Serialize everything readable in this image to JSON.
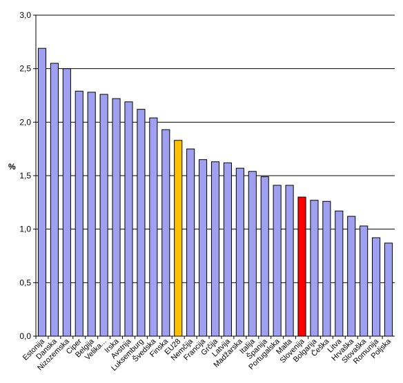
{
  "chart_data": {
    "type": "bar",
    "title": "",
    "xlabel": "",
    "ylabel": "%",
    "ylim": [
      0,
      3
    ],
    "yticks": [
      "0,0",
      "0,5",
      "1,0",
      "1,5",
      "2,0",
      "2,5",
      "3,0"
    ],
    "grid": true,
    "legend": "none",
    "categories": [
      "Estonija",
      "Danska",
      "Nizozemska",
      "Ciper",
      "Belgija",
      "Velika...",
      "Irska",
      "Avstrija",
      "Luksemburg",
      "Švedska",
      "Finska",
      "EU28",
      "Nemčija",
      "Francija",
      "Grčija",
      "Latvija",
      "Madžarska",
      "Italija",
      "Španija",
      "Portugalska",
      "Malta",
      "Slovenija",
      "Bolgarija",
      "Češka",
      "Litva",
      "Hrvaška",
      "Slovaška",
      "Romunija",
      "Poljska"
    ],
    "values": [
      2.69,
      2.55,
      2.5,
      2.29,
      2.28,
      2.26,
      2.22,
      2.19,
      2.12,
      2.04,
      1.93,
      1.83,
      1.75,
      1.65,
      1.63,
      1.62,
      1.57,
      1.54,
      1.49,
      1.41,
      1.41,
      1.3,
      1.27,
      1.26,
      1.17,
      1.12,
      1.03,
      0.92,
      0.87
    ],
    "colors": {
      "default": "#a0a0f0",
      "highlight_eu28": "#ffc000",
      "highlight_slovenija": "#ff0000",
      "axis": "#000000",
      "grid": "#000000"
    }
  }
}
